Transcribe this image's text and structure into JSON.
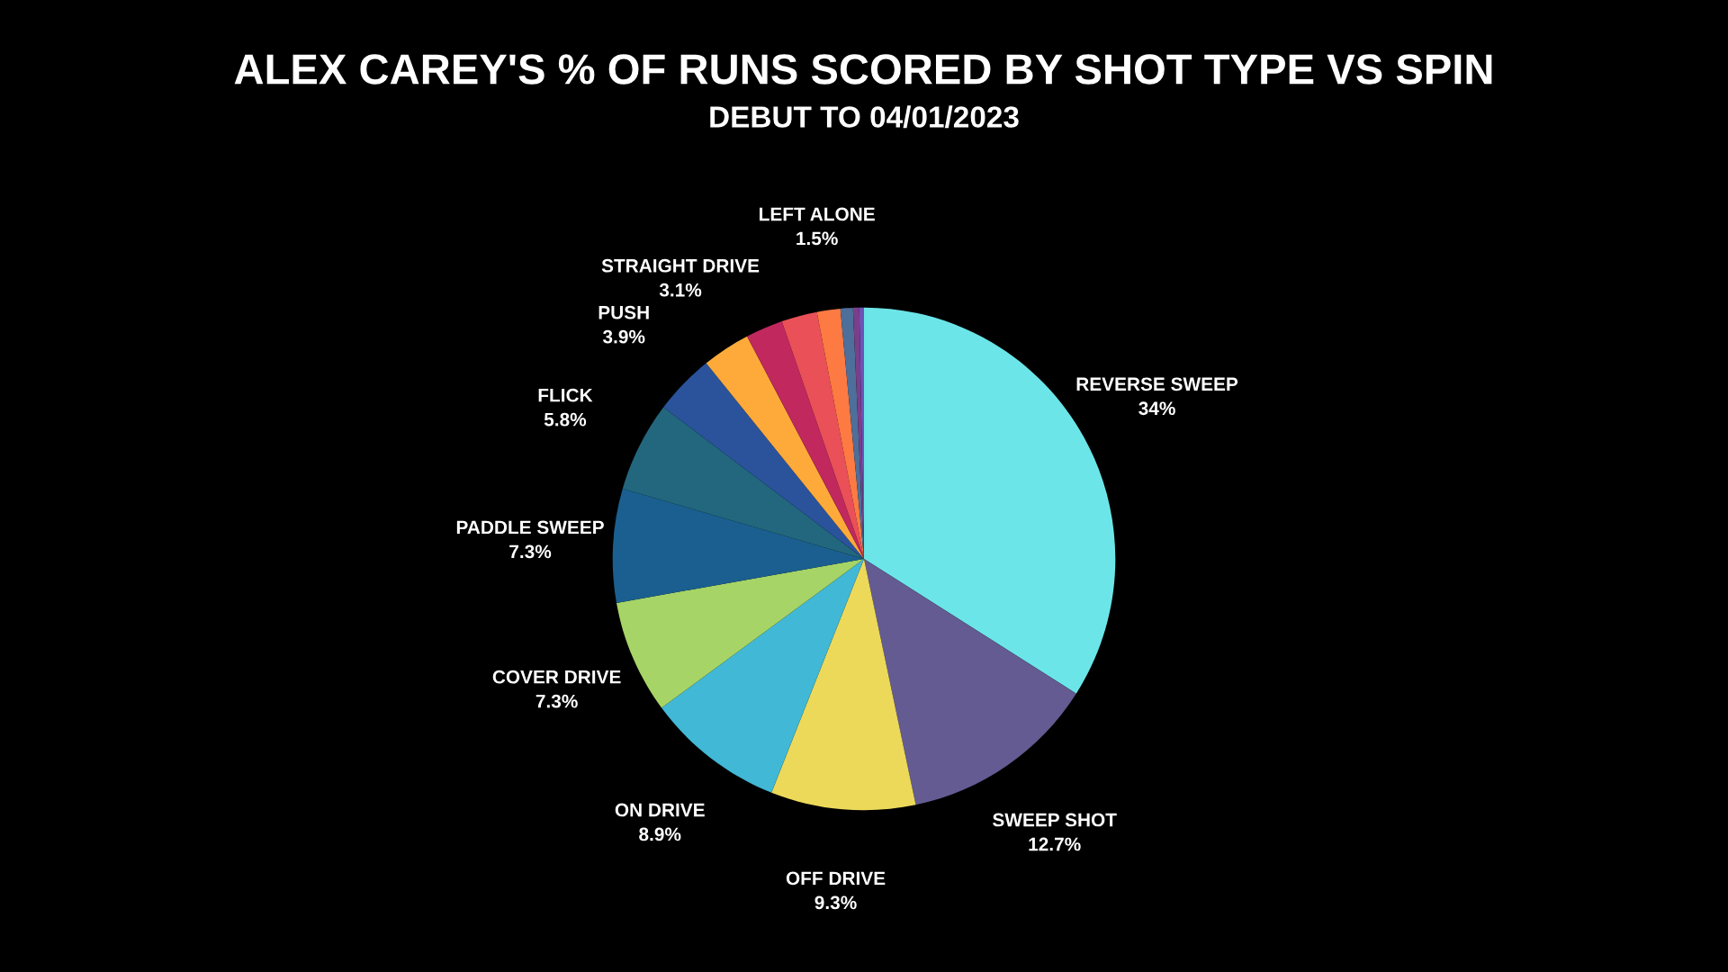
{
  "chart_data": {
    "type": "pie",
    "title": "ALEX CAREY'S % OF RUNS SCORED BY SHOT TYPE VS SPIN",
    "subtitle": "DEBUT TO 04/01/2023",
    "categories": [
      "REVERSE SWEEP",
      "SWEEP SHOT",
      "OFF DRIVE",
      "ON DRIVE",
      "COVER DRIVE",
      "PADDLE SWEEP",
      "FLICK",
      "PUSH",
      "STRAIGHT DRIVE",
      null,
      null,
      "LEFT ALONE",
      null,
      null,
      null
    ],
    "values": [
      34,
      12.7,
      9.3,
      8.9,
      7.3,
      7.3,
      5.8,
      3.9,
      3.1,
      2.4,
      2.3,
      1.5,
      0.8,
      0.4,
      0.3
    ],
    "value_labels": [
      "34%",
      "12.7%",
      "9.3%",
      "8.9%",
      "7.3%",
      "7.3%",
      "5.8%",
      "3.9%",
      "3.1%",
      null,
      null,
      "1.5%",
      null,
      null,
      null
    ],
    "colors": [
      "#6ce5e8",
      "#635b91",
      "#ecd95a",
      "#41b8d5",
      "#a6d467",
      "#1a5f8f",
      "#22677d",
      "#2a539c",
      "#fdaa3a",
      "#c0285e",
      "#ea5058",
      "#fd7a42",
      "#4e6f9a",
      "#7a3f8a",
      "#6f52b8"
    ]
  }
}
